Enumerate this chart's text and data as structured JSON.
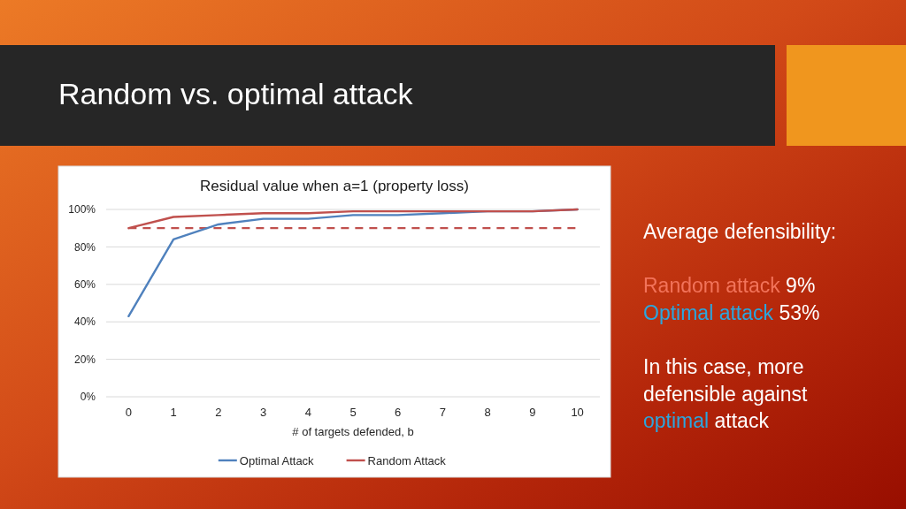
{
  "chart_data": {
    "type": "line",
    "title": "Random vs. optimal attack",
    "subtitle": "Residual value when a=1 (property loss)",
    "xlabel": "# of targets defended, b",
    "categories": [
      "0",
      "1",
      "2",
      "3",
      "4",
      "5",
      "6",
      "7",
      "8",
      "9",
      "10"
    ],
    "series": [
      {
        "name": "Optimal Attack",
        "color": "#4f81bd",
        "values": [
          43,
          84,
          92,
          95,
          95,
          97,
          97,
          98,
          99,
          99,
          100
        ]
      },
      {
        "name": "Random Attack",
        "color": "#c0504d",
        "values": [
          90,
          96,
          97,
          98,
          98,
          99,
          99,
          99,
          99,
          99,
          100
        ]
      }
    ],
    "ylim": [
      0,
      100
    ],
    "yticks": [
      {
        "value": 0,
        "label": "0%"
      },
      {
        "value": 20,
        "label": "20%"
      },
      {
        "value": 40,
        "label": "40%"
      },
      {
        "value": 60,
        "label": "60%"
      },
      {
        "value": 80,
        "label": "80%"
      },
      {
        "value": 100,
        "label": "100%"
      }
    ],
    "grid": "y",
    "legend": "bottom",
    "ref_lines": [
      {
        "axis": "y",
        "value": 90,
        "color": "#c0504d",
        "line_style": "dashed"
      }
    ],
    "annotations": [
      "Average defensibility:",
      "Random attack 9%",
      "Optimal attack 53%",
      "In this case, more defensible against optimal attack"
    ]
  }
}
